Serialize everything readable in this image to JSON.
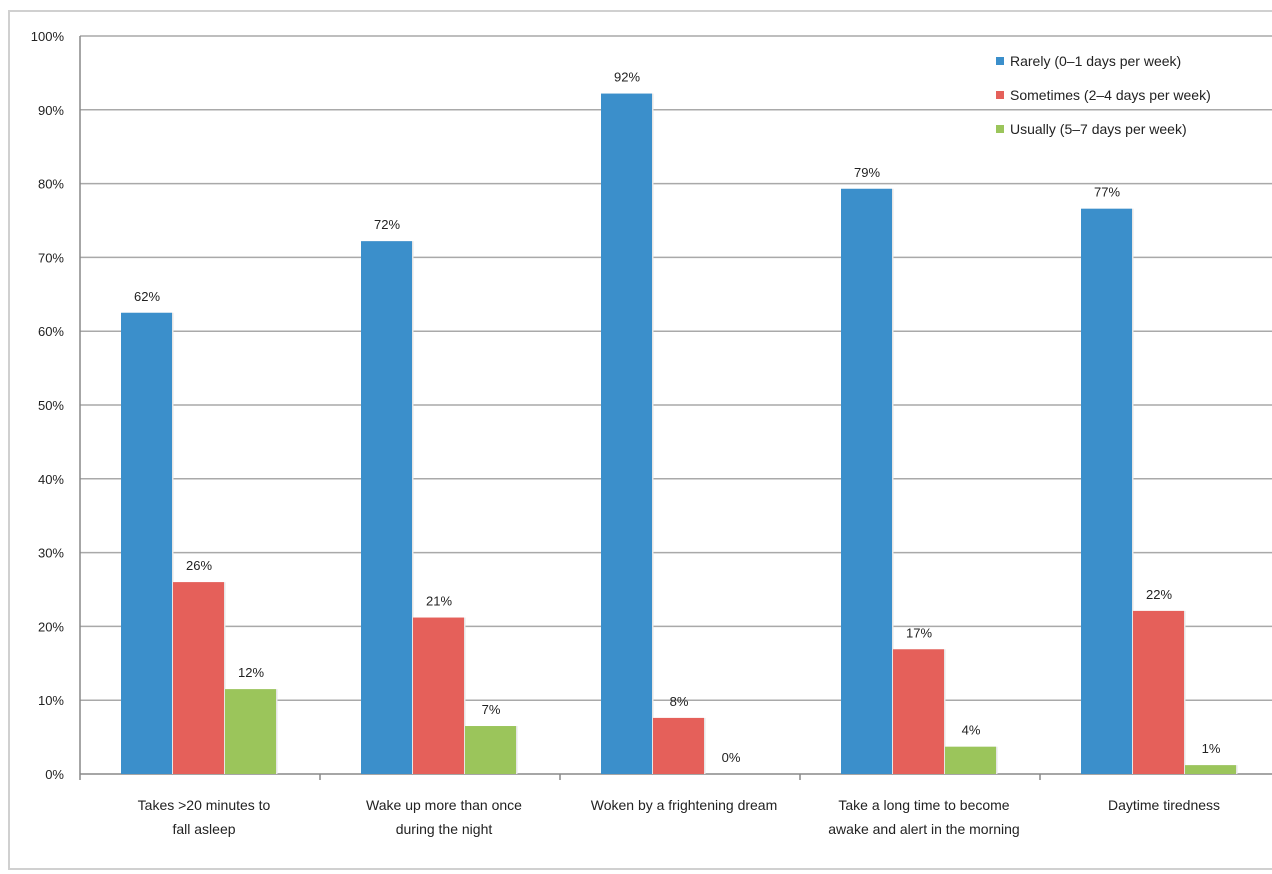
{
  "colors": {
    "rarely": "#3b8fcb",
    "sometimes": "#e5605a",
    "usually": "#9bc55b",
    "grid": "#a9a9a9"
  },
  "chart_data": {
    "type": "bar",
    "categories": [
      [
        "Takes >20 minutes to",
        "fall asleep"
      ],
      [
        "Wake up more than once",
        "during the night"
      ],
      [
        "Woken by a frightening dream"
      ],
      [
        "Take a long time to become",
        "awake and alert in the morning"
      ],
      [
        "Daytime tiredness"
      ]
    ],
    "series": [
      {
        "name": "Rarely (0–1 days per week)",
        "values": [
          62.5,
          72.2,
          92.2,
          79.3,
          76.6
        ],
        "labels": [
          "62%",
          "72%",
          "92%",
          "79%",
          "77%"
        ]
      },
      {
        "name": "Sometimes (2–4 days per week)",
        "values": [
          26.0,
          21.2,
          7.6,
          16.9,
          22.1
        ],
        "labels": [
          "26%",
          "21%",
          "8%",
          "17%",
          "22%"
        ]
      },
      {
        "name": "Usually (5–7 days per week)",
        "values": [
          11.5,
          6.5,
          0,
          3.7,
          1.2
        ],
        "labels": [
          "12%",
          "7%",
          "0%",
          "4%",
          "1%"
        ]
      }
    ],
    "ylim": [
      0,
      100
    ],
    "yticks": [
      "0%",
      "10%",
      "20%",
      "30%",
      "40%",
      "50%",
      "60%",
      "70%",
      "80%",
      "90%",
      "100%"
    ],
    "grid": true,
    "legend": "top-right",
    "title": "",
    "xlabel": "",
    "ylabel": ""
  }
}
